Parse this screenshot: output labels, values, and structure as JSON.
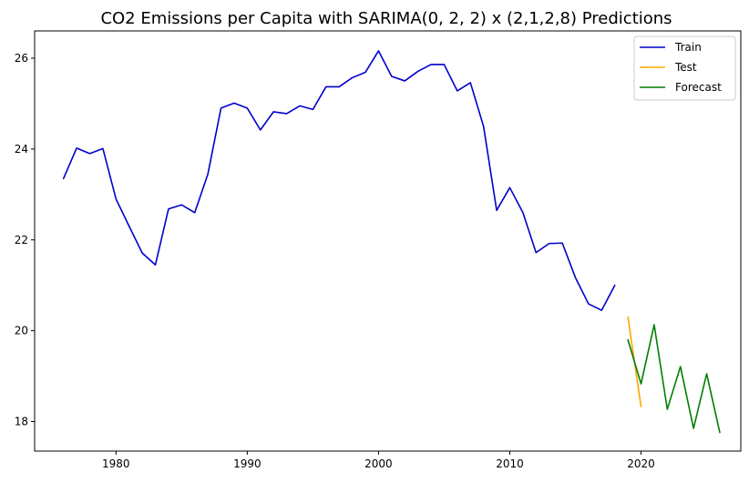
{
  "chart_data": {
    "type": "line",
    "title": "CO2 Emissions per Capita with SARIMA(0, 2, 2) x (2,1,2,8) Predictions",
    "xlabel": "",
    "ylabel": "",
    "xlim": [
      1973.8,
      2027.6
    ],
    "ylim": [
      17.35,
      26.6
    ],
    "xticks": [
      1980,
      1990,
      2000,
      2010,
      2020
    ],
    "yticks": [
      18,
      20,
      22,
      24,
      26
    ],
    "grid": false,
    "legend": "top-right",
    "series": [
      {
        "name": "Train",
        "color": "#0000cc",
        "x": [
          1976,
          1977,
          1978,
          1979,
          1980,
          1981,
          1982,
          1983,
          1984,
          1985,
          1986,
          1987,
          1988,
          1989,
          1990,
          1991,
          1992,
          1993,
          1994,
          1995,
          1996,
          1997,
          1998,
          1999,
          2000,
          2001,
          2002,
          2003,
          2004,
          2005,
          2006,
          2007,
          2008,
          2009,
          2010,
          2011,
          2012,
          2013,
          2014,
          2015,
          2016,
          2017,
          2018
        ],
        "y": [
          23.35,
          24.02,
          23.9,
          24.01,
          22.9,
          22.3,
          21.71,
          21.45,
          22.68,
          22.77,
          22.6,
          23.45,
          24.9,
          25.01,
          24.9,
          24.42,
          24.82,
          24.78,
          24.95,
          24.87,
          25.37,
          25.37,
          25.57,
          25.69,
          26.16,
          25.6,
          25.5,
          25.71,
          25.86,
          25.86,
          25.28,
          25.46,
          24.5,
          22.65,
          23.15,
          22.6,
          21.72,
          21.92,
          21.93,
          21.17,
          20.59,
          20.45,
          21.0
        ]
      },
      {
        "name": "Test",
        "color": "#ffa500",
        "x": [
          2019,
          2020
        ],
        "y": [
          20.3,
          18.33
        ]
      },
      {
        "name": "Forecast",
        "color": "#007f00",
        "x": [
          2019,
          2020,
          2021,
          2022,
          2023,
          2024,
          2025,
          2026
        ],
        "y": [
          19.8,
          18.83,
          20.13,
          18.27,
          19.21,
          17.85,
          19.05,
          17.76
        ]
      }
    ]
  }
}
